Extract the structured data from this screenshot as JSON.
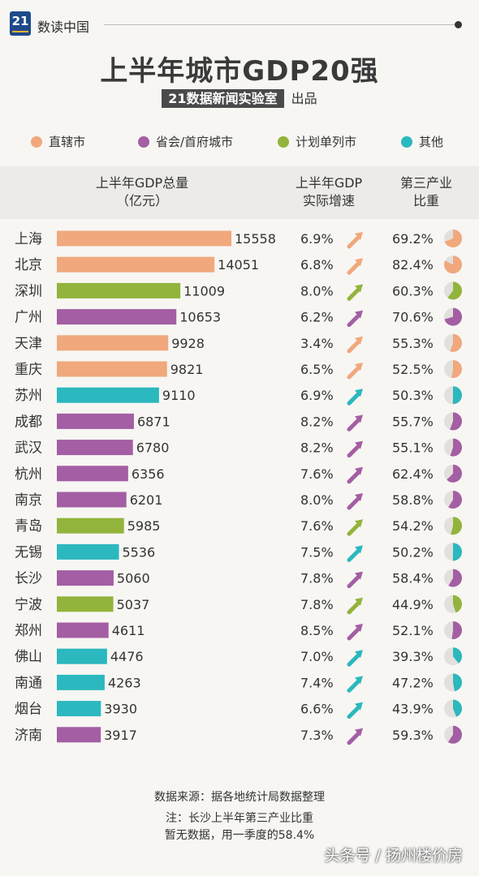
{
  "brand": {
    "logo_text": "21",
    "name": "数读中国"
  },
  "title": "上半年城市GDP20强",
  "subtitle": {
    "label": "21数据新闻实验室",
    "tail": "出品"
  },
  "legend": [
    {
      "label": "直辖市",
      "color": "#f0a87c"
    },
    {
      "label": "省会/首府城市",
      "color": "#a45ea3"
    },
    {
      "label": "计划单列市",
      "color": "#93b43c"
    },
    {
      "label": "其他",
      "color": "#2bb8be"
    }
  ],
  "headers": {
    "gdp": "上半年GDP总量\n（亿元）",
    "growth": "上半年GDP\n实际增速",
    "tertiary": "第三产业\n比重"
  },
  "chart_data": {
    "type": "bar",
    "value_unit": "亿元",
    "category_colors": {
      "直辖市": "#f0a87c",
      "省会/首府城市": "#a45ea3",
      "计划单列市": "#93b43c",
      "其他": "#2bb8be"
    },
    "rows": [
      {
        "city": "上海",
        "gdp": 15558,
        "growth": "6.9%",
        "tertiary": "69.2%",
        "tertiary_value": 69.2,
        "category": "直辖市"
      },
      {
        "city": "北京",
        "gdp": 14051,
        "growth": "6.8%",
        "tertiary": "82.4%",
        "tertiary_value": 82.4,
        "category": "直辖市"
      },
      {
        "city": "深圳",
        "gdp": 11009,
        "growth": "8.0%",
        "tertiary": "60.3%",
        "tertiary_value": 60.3,
        "category": "计划单列市"
      },
      {
        "city": "广州",
        "gdp": 10653,
        "growth": "6.2%",
        "tertiary": "70.6%",
        "tertiary_value": 70.6,
        "category": "省会/首府城市"
      },
      {
        "city": "天津",
        "gdp": 9928,
        "growth": "3.4%",
        "tertiary": "55.3%",
        "tertiary_value": 55.3,
        "category": "直辖市"
      },
      {
        "city": "重庆",
        "gdp": 9821,
        "growth": "6.5%",
        "tertiary": "52.5%",
        "tertiary_value": 52.5,
        "category": "直辖市"
      },
      {
        "city": "苏州",
        "gdp": 9110,
        "growth": "6.9%",
        "tertiary": "50.3%",
        "tertiary_value": 50.3,
        "category": "其他"
      },
      {
        "city": "成都",
        "gdp": 6871,
        "growth": "8.2%",
        "tertiary": "55.7%",
        "tertiary_value": 55.7,
        "category": "省会/首府城市"
      },
      {
        "city": "武汉",
        "gdp": 6780,
        "growth": "8.2%",
        "tertiary": "55.1%",
        "tertiary_value": 55.1,
        "category": "省会/首府城市"
      },
      {
        "city": "杭州",
        "gdp": 6356,
        "growth": "7.6%",
        "tertiary": "62.4%",
        "tertiary_value": 62.4,
        "category": "省会/首府城市"
      },
      {
        "city": "南京",
        "gdp": 6201,
        "growth": "8.0%",
        "tertiary": "58.8%",
        "tertiary_value": 58.8,
        "category": "省会/首府城市"
      },
      {
        "city": "青岛",
        "gdp": 5985,
        "growth": "7.6%",
        "tertiary": "54.2%",
        "tertiary_value": 54.2,
        "category": "计划单列市"
      },
      {
        "city": "无锡",
        "gdp": 5536,
        "growth": "7.5%",
        "tertiary": "50.2%",
        "tertiary_value": 50.2,
        "category": "其他"
      },
      {
        "city": "长沙",
        "gdp": 5060,
        "growth": "7.8%",
        "tertiary": "58.4%",
        "tertiary_value": 58.4,
        "category": "省会/首府城市"
      },
      {
        "city": "宁波",
        "gdp": 5037,
        "growth": "7.8%",
        "tertiary": "44.9%",
        "tertiary_value": 44.9,
        "category": "计划单列市"
      },
      {
        "city": "郑州",
        "gdp": 4611,
        "growth": "8.5%",
        "tertiary": "52.1%",
        "tertiary_value": 52.1,
        "category": "省会/首府城市"
      },
      {
        "city": "佛山",
        "gdp": 4476,
        "growth": "7.0%",
        "tertiary": "39.3%",
        "tertiary_value": 39.3,
        "category": "其他"
      },
      {
        "city": "南通",
        "gdp": 4263,
        "growth": "7.4%",
        "tertiary": "47.2%",
        "tertiary_value": 47.2,
        "category": "其他"
      },
      {
        "city": "烟台",
        "gdp": 3930,
        "growth": "6.6%",
        "tertiary": "43.9%",
        "tertiary_value": 43.9,
        "category": "其他"
      },
      {
        "city": "济南",
        "gdp": 3917,
        "growth": "7.3%",
        "tertiary": "59.3%",
        "tertiary_value": 59.3,
        "category": "省会/首府城市"
      }
    ]
  },
  "footer": {
    "source": "数据来源：据各地统计局数据整理",
    "note1": "注：长沙上半年第三产业比重",
    "note2": "暂无数据，用一季度的58.4%"
  },
  "watermark": "头条号 / 扬州楼价房"
}
